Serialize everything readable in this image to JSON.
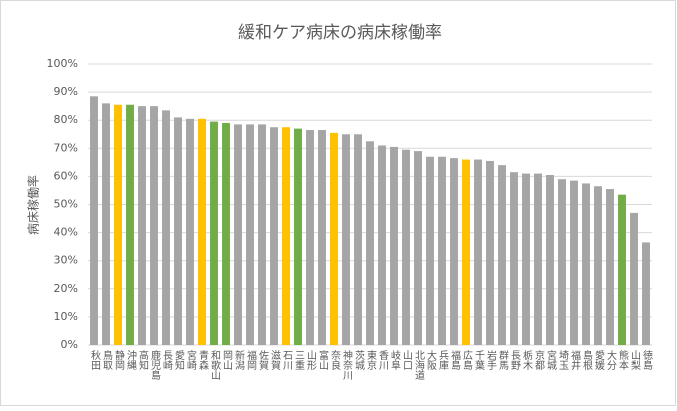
{
  "chart_data": {
    "type": "bar",
    "title": "緩和ケア病床の病床稼働率",
    "y_label": "病床稼働率",
    "categories": [
      "秋田",
      "鳥取",
      "静岡",
      "沖縄",
      "高知",
      "鹿児島",
      "長崎",
      "愛知",
      "宮崎",
      "青森",
      "和歌山",
      "岡山",
      "新潟",
      "福岡",
      "佐賀",
      "滋賀",
      "石川",
      "三重",
      "山形",
      "富山",
      "奈良",
      "神奈川",
      "茨城",
      "東京",
      "香川",
      "岐阜",
      "山口",
      "北海道",
      "大阪",
      "兵庫",
      "福島",
      "広島",
      "千葉",
      "岩手",
      "群馬",
      "長野",
      "栃木",
      "京都",
      "宮城",
      "埼玉",
      "福井",
      "島根",
      "愛媛",
      "大分",
      "熊本",
      "山梨",
      "徳島"
    ],
    "values": [
      88.5,
      86,
      85.5,
      85.5,
      85,
      85,
      83.5,
      81,
      80.5,
      80.5,
      79.5,
      79,
      78.5,
      78.5,
      78.5,
      77.5,
      77.5,
      77,
      76.5,
      76.5,
      75.5,
      75,
      75,
      72.5,
      71,
      70.5,
      69.5,
      69,
      67,
      67,
      66.5,
      66,
      66,
      65.5,
      64,
      61.5,
      61,
      61,
      60.5,
      59,
      58.5,
      57.5,
      56.5,
      55.5,
      53.5,
      47,
      36.5
    ],
    "colors": [
      "#a5a5a5",
      "#a5a5a5",
      "#ffc000",
      "#70ad47",
      "#a5a5a5",
      "#a5a5a5",
      "#a5a5a5",
      "#a5a5a5",
      "#a5a5a5",
      "#ffc000",
      "#70ad47",
      "#70ad47",
      "#a5a5a5",
      "#a5a5a5",
      "#a5a5a5",
      "#a5a5a5",
      "#ffc000",
      "#70ad47",
      "#a5a5a5",
      "#a5a5a5",
      "#ffc000",
      "#a5a5a5",
      "#a5a5a5",
      "#a5a5a5",
      "#a5a5a5",
      "#a5a5a5",
      "#a5a5a5",
      "#a5a5a5",
      "#a5a5a5",
      "#a5a5a5",
      "#a5a5a5",
      "#ffc000",
      "#a5a5a5",
      "#a5a5a5",
      "#a5a5a5",
      "#a5a5a5",
      "#a5a5a5",
      "#a5a5a5",
      "#a5a5a5",
      "#a5a5a5",
      "#a5a5a5",
      "#a5a5a5",
      "#a5a5a5",
      "#a5a5a5",
      "#70ad47",
      "#a5a5a5",
      "#a5a5a5"
    ],
    "ylim": [
      0,
      100
    ],
    "yticks": [
      {
        "value": 0,
        "label": "0%"
      },
      {
        "value": 10,
        "label": "10%"
      },
      {
        "value": 20,
        "label": "20%"
      },
      {
        "value": 30,
        "label": "30%"
      },
      {
        "value": 40,
        "label": "40%"
      },
      {
        "value": 50,
        "label": "50%"
      },
      {
        "value": 60,
        "label": "60%"
      },
      {
        "value": 70,
        "label": "70%"
      },
      {
        "value": 80,
        "label": "80%"
      },
      {
        "value": 90,
        "label": "90%"
      },
      {
        "value": 100,
        "label": "100%"
      }
    ],
    "grid": true
  }
}
